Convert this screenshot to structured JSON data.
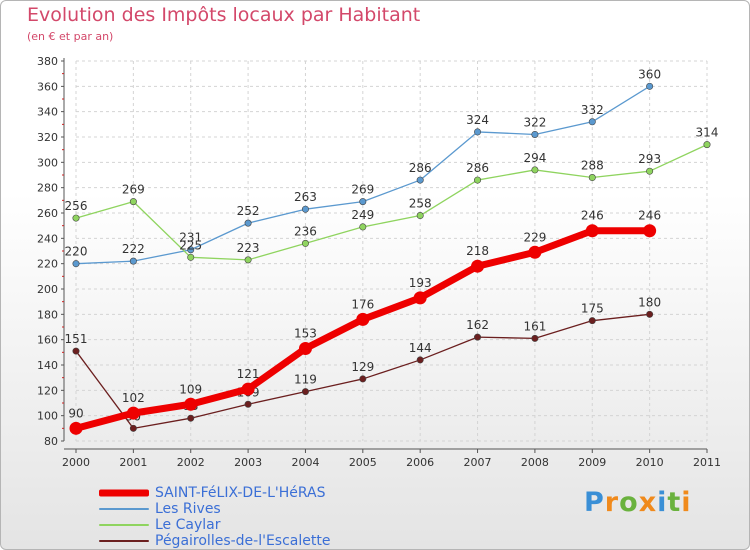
{
  "title": "Evolution des Impôts locaux par Habitant",
  "subtitle": "(en € et par an)",
  "logo": {
    "letters": [
      "P",
      "r",
      "o",
      "x",
      "i",
      "t",
      "i"
    ],
    "colors": [
      "#3a8fd6",
      "#f08a1c",
      "#6ab23e",
      "#f08a1c",
      "#3a8fd6",
      "#6ab23e",
      "#f08a1c"
    ]
  },
  "chart_data": {
    "type": "line",
    "x": [
      2000,
      2001,
      2002,
      2003,
      2004,
      2005,
      2006,
      2007,
      2008,
      2009,
      2010,
      2011
    ],
    "ylim": [
      80,
      380
    ],
    "yticks": [
      80,
      100,
      120,
      140,
      160,
      180,
      200,
      220,
      240,
      260,
      280,
      300,
      320,
      340,
      360,
      380
    ],
    "xlim": [
      2000,
      2011
    ],
    "grid": true,
    "legend_position": "bottom-left",
    "series": [
      {
        "name": "SAINT-FéLIX-DE-L'HéRAS",
        "color": "#ee0000",
        "values": [
          90,
          102,
          109,
          121,
          153,
          176,
          193,
          218,
          229,
          246,
          246,
          null
        ],
        "highlight": true
      },
      {
        "name": "Les Rives",
        "color": "#5b99cf",
        "values": [
          220,
          222,
          231,
          252,
          263,
          269,
          286,
          324,
          322,
          332,
          360,
          null
        ]
      },
      {
        "name": "Le Caylar",
        "color": "#8fd45f",
        "values": [
          256,
          269,
          225,
          223,
          236,
          249,
          258,
          286,
          294,
          288,
          293,
          314
        ]
      },
      {
        "name": "Pégairolles-de-l'Escalette",
        "color": "#6b1f1f",
        "values": [
          151,
          90,
          98,
          109,
          119,
          129,
          144,
          162,
          161,
          175,
          180,
          null
        ]
      }
    ]
  }
}
